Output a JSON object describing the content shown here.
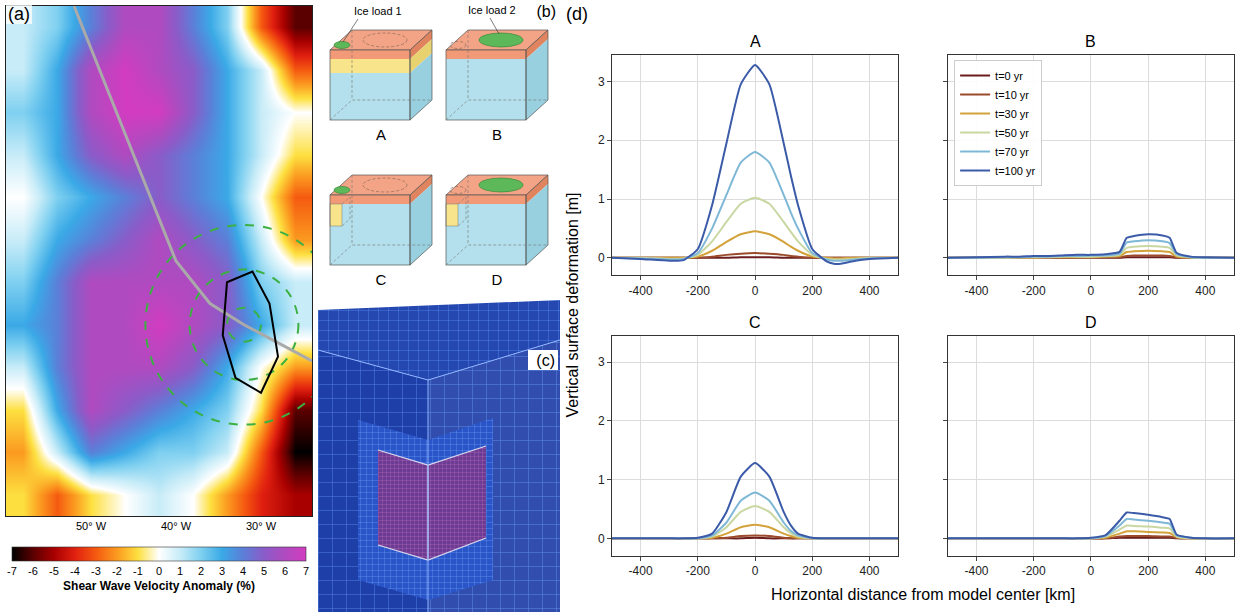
{
  "chart_data": [
    {
      "type": "heatmap",
      "panel_label": "(a)",
      "x": [
        -58,
        -54,
        -50,
        -46,
        -42,
        -38,
        -34,
        -30,
        -26
      ],
      "y": [
        60,
        62,
        64,
        66,
        68,
        70,
        72,
        74,
        76,
        78,
        80,
        82
      ],
      "cells": [
        [
          -1,
          -3,
          -1,
          0,
          1,
          0,
          -2,
          -4,
          -5
        ],
        [
          -2,
          1,
          4,
          3,
          2,
          2,
          1,
          -3,
          -7
        ],
        [
          -1,
          3,
          6,
          5,
          4,
          3,
          2,
          -1,
          -6
        ],
        [
          1,
          4,
          6,
          6,
          6,
          5,
          3,
          0,
          -2
        ],
        [
          3,
          4,
          6,
          6,
          7,
          6,
          5,
          3,
          1
        ],
        [
          2,
          4,
          6,
          6,
          6,
          6,
          5,
          2,
          1
        ],
        [
          1,
          3,
          4,
          5,
          6,
          5,
          4,
          1,
          -2
        ],
        [
          0,
          2,
          3,
          4,
          5,
          4,
          3,
          0,
          -3
        ],
        [
          1,
          3,
          5,
          6,
          5,
          4,
          3,
          1,
          -1
        ],
        [
          2,
          3,
          6,
          7,
          7,
          5,
          3,
          1,
          0
        ],
        [
          1,
          3,
          6,
          7,
          6,
          5,
          3,
          1,
          -3
        ],
        [
          1,
          2,
          4,
          6,
          6,
          4,
          2,
          -3,
          -6
        ]
      ],
      "xlim": [
        -60,
        -24
      ],
      "ylim": [
        59,
        83
      ],
      "xticks": [
        {
          "value": -50,
          "label": "50° W"
        },
        {
          "value": -40,
          "label": "40° W"
        },
        {
          "value": -30,
          "label": "30° W"
        }
      ],
      "tick_labels": "x",
      "colorbar": {
        "title": "Shear Wave Velocity Anomaly (%)",
        "range": [
          -7,
          7
        ],
        "ticks": [
          -7,
          -6,
          -5,
          -4,
          -3,
          -2,
          -1,
          0,
          1,
          2,
          3,
          4,
          5,
          6,
          7
        ]
      }
    },
    {
      "type": "line",
      "title": "A",
      "x": [
        -500,
        -400,
        -300,
        -250,
        -200,
        -150,
        -100,
        -50,
        0,
        50,
        100,
        125,
        150,
        200,
        250,
        275,
        300,
        350,
        400,
        500
      ],
      "series": [
        {
          "name": "t=0 yr",
          "color": "#6b1d1d",
          "values": [
            0,
            0,
            0,
            0,
            0,
            0,
            0,
            0.01,
            0.01,
            0.01,
            0,
            0,
            0,
            0,
            0,
            0,
            0,
            0,
            0,
            0
          ]
        },
        {
          "name": "t=10 yr",
          "color": "#9b4a2c",
          "values": [
            0,
            0,
            0,
            0,
            0,
            0.02,
            0.05,
            0.07,
            0.08,
            0.07,
            0.05,
            0.03,
            0.02,
            0,
            0,
            0,
            0,
            0,
            0,
            0
          ]
        },
        {
          "name": "t=30 yr",
          "color": "#d4a23a",
          "values": [
            0,
            0,
            0,
            0,
            0.02,
            0.12,
            0.27,
            0.4,
            0.45,
            0.4,
            0.27,
            0.19,
            0.12,
            0.02,
            0,
            -0.01,
            -0.01,
            0,
            0,
            0
          ]
        },
        {
          "name": "t=50 yr",
          "color": "#c9d7a2",
          "values": [
            0,
            0,
            -0.02,
            -0.01,
            0.05,
            0.28,
            0.61,
            0.92,
            1.02,
            0.92,
            0.61,
            0.44,
            0.28,
            0.05,
            -0.02,
            -0.03,
            -0.03,
            -0.02,
            0,
            0
          ]
        },
        {
          "name": "t=70 yr",
          "color": "#7fb8d6",
          "values": [
            0,
            -0.01,
            -0.03,
            -0.02,
            0.08,
            0.5,
            1.07,
            1.62,
            1.8,
            1.62,
            1.07,
            0.77,
            0.5,
            0.08,
            -0.03,
            -0.05,
            -0.05,
            -0.03,
            -0.01,
            0
          ]
        },
        {
          "name": "t=100 yr",
          "color": "#3b5ba9",
          "values": [
            0,
            -0.02,
            -0.05,
            -0.04,
            0.15,
            0.9,
            1.95,
            2.95,
            3.28,
            2.95,
            1.95,
            1.4,
            0.9,
            0.15,
            -0.06,
            -0.1,
            -0.1,
            -0.05,
            -0.02,
            0
          ]
        }
      ],
      "xlim": [
        -500,
        500
      ],
      "ylim": [
        -0.3,
        3.45
      ],
      "xticks": [
        -400,
        -200,
        0,
        200,
        400
      ],
      "yticks": [
        0,
        1,
        2,
        3
      ],
      "grid": true
    },
    {
      "type": "line",
      "title": "B",
      "x": [
        -500,
        -400,
        -300,
        -250,
        -200,
        -150,
        -100,
        -50,
        0,
        50,
        100,
        125,
        150,
        200,
        250,
        275,
        300,
        350,
        400,
        500
      ],
      "series": [
        {
          "name": "t=0 yr",
          "color": "#6b1d1d",
          "values": [
            0,
            0,
            0,
            0,
            0,
            0,
            0,
            0,
            0,
            0,
            0,
            0.01,
            0.01,
            0.01,
            0.01,
            0.01,
            0,
            0,
            0,
            0
          ]
        },
        {
          "name": "t=10 yr",
          "color": "#9b4a2c",
          "values": [
            0,
            0,
            0,
            0,
            0,
            0,
            0,
            0.01,
            0.01,
            0.01,
            0.01,
            0.03,
            0.04,
            0.04,
            0.04,
            0.03,
            0.01,
            0,
            0,
            0
          ]
        },
        {
          "name": "t=30 yr",
          "color": "#d4a23a",
          "values": [
            0,
            0,
            0,
            0,
            0,
            0.01,
            0.01,
            0.01,
            0.01,
            0.02,
            0.03,
            0.1,
            0.11,
            0.12,
            0.11,
            0.1,
            0.02,
            0,
            0,
            0
          ]
        },
        {
          "name": "t=50 yr",
          "color": "#c9d7a2",
          "values": [
            0,
            0,
            0,
            0.01,
            0.01,
            0.01,
            0.02,
            0.02,
            0.02,
            0.03,
            0.05,
            0.17,
            0.19,
            0.2,
            0.19,
            0.17,
            0.04,
            0.01,
            0,
            0
          ]
        },
        {
          "name": "t=70 yr",
          "color": "#7fb8d6",
          "values": [
            0,
            0,
            0.01,
            0.01,
            0.02,
            0.02,
            0.03,
            0.03,
            0.04,
            0.04,
            0.07,
            0.26,
            0.28,
            0.3,
            0.28,
            0.25,
            0.06,
            0.01,
            0,
            0
          ]
        },
        {
          "name": "t=100 yr",
          "color": "#3b5ba9",
          "values": [
            0,
            0.01,
            0.02,
            0.02,
            0.03,
            0.03,
            0.04,
            0.05,
            0.05,
            0.06,
            0.1,
            0.34,
            0.37,
            0.4,
            0.38,
            0.34,
            0.08,
            0.02,
            0.01,
            0
          ]
        }
      ],
      "xlim": [
        -500,
        500
      ],
      "ylim": [
        -0.3,
        3.45
      ],
      "xticks": [
        -400,
        -200,
        0,
        200,
        400
      ],
      "yticks": [
        0,
        1,
        2,
        3
      ],
      "grid": true,
      "tick_labels": "x",
      "legend": "upper left"
    },
    {
      "type": "line",
      "title": "C",
      "x": [
        -500,
        -400,
        -300,
        -250,
        -200,
        -150,
        -100,
        -50,
        0,
        50,
        100,
        125,
        150,
        200,
        250,
        275,
        300,
        350,
        400,
        500
      ],
      "series": [
        {
          "name": "t=0 yr",
          "color": "#6b1d1d",
          "values": [
            0,
            0,
            0,
            0,
            0,
            0,
            0,
            0,
            0.01,
            0,
            0,
            0,
            0,
            0,
            0,
            0,
            0,
            0,
            0,
            0
          ]
        },
        {
          "name": "t=10 yr",
          "color": "#9b4a2c",
          "values": [
            0,
            0,
            0,
            0,
            0,
            0,
            0.01,
            0.04,
            0.05,
            0.04,
            0.01,
            0,
            0,
            0,
            0,
            0,
            0,
            0,
            0,
            0
          ]
        },
        {
          "name": "t=30 yr",
          "color": "#d4a23a",
          "values": [
            0,
            0,
            0,
            0,
            0,
            0.01,
            0.08,
            0.19,
            0.23,
            0.19,
            0.08,
            0.04,
            0.01,
            0,
            0,
            0,
            0,
            0,
            0,
            0
          ]
        },
        {
          "name": "t=50 yr",
          "color": "#c9d7a2",
          "values": [
            0,
            0,
            0,
            0,
            0,
            0.03,
            0.19,
            0.45,
            0.55,
            0.45,
            0.19,
            0.09,
            0.03,
            0,
            0,
            0,
            0,
            0,
            0,
            0
          ]
        },
        {
          "name": "t=70 yr",
          "color": "#7fb8d6",
          "values": [
            0,
            0,
            0,
            0,
            0,
            0.05,
            0.27,
            0.64,
            0.78,
            0.64,
            0.27,
            0.13,
            0.05,
            0,
            0,
            0,
            0,
            0,
            0,
            0
          ]
        },
        {
          "name": "t=100 yr",
          "color": "#3b5ba9",
          "values": [
            0,
            0,
            0,
            0,
            0.01,
            0.08,
            0.45,
            1.05,
            1.28,
            1.05,
            0.45,
            0.22,
            0.08,
            0.01,
            0,
            0,
            0,
            0,
            0,
            0
          ]
        }
      ],
      "xlim": [
        -500,
        500
      ],
      "ylim": [
        -0.3,
        3.45
      ],
      "xticks": [
        -400,
        -200,
        0,
        200,
        400
      ],
      "yticks": [
        0,
        1,
        2,
        3
      ],
      "grid": true
    },
    {
      "type": "line",
      "title": "D",
      "x": [
        -500,
        -400,
        -300,
        -250,
        -200,
        -150,
        -100,
        -50,
        0,
        50,
        100,
        125,
        150,
        200,
        250,
        275,
        300,
        350,
        400,
        500
      ],
      "series": [
        {
          "name": "t=0 yr",
          "color": "#6b1d1d",
          "values": [
            0,
            0,
            0,
            0,
            0,
            0,
            0,
            0,
            0,
            0,
            0.01,
            0.01,
            0.01,
            0.01,
            0.01,
            0.01,
            0,
            0,
            0,
            0
          ]
        },
        {
          "name": "t=10 yr",
          "color": "#9b4a2c",
          "values": [
            0,
            0,
            0,
            0,
            0,
            0,
            0,
            0,
            0,
            0,
            0.03,
            0.04,
            0.04,
            0.04,
            0.03,
            0.03,
            0.01,
            0,
            0,
            0
          ]
        },
        {
          "name": "t=30 yr",
          "color": "#d4a23a",
          "values": [
            0,
            0,
            0,
            0,
            0,
            0,
            0,
            0,
            0,
            0.01,
            0.08,
            0.12,
            0.12,
            0.11,
            0.1,
            0.09,
            0.02,
            0,
            0,
            0
          ]
        },
        {
          "name": "t=50 yr",
          "color": "#c9d7a2",
          "values": [
            0,
            0,
            0,
            0,
            0,
            0,
            0,
            0,
            0,
            0.03,
            0.15,
            0.22,
            0.21,
            0.2,
            0.18,
            0.17,
            0.03,
            0,
            0,
            0
          ]
        },
        {
          "name": "t=70 yr",
          "color": "#7fb8d6",
          "values": [
            0,
            0,
            0,
            0,
            0,
            0,
            0,
            0,
            0,
            0.04,
            0.22,
            0.33,
            0.32,
            0.3,
            0.27,
            0.25,
            0.05,
            0.01,
            0,
            0
          ]
        },
        {
          "name": "t=100 yr",
          "color": "#3b5ba9",
          "values": [
            0,
            0,
            0,
            0,
            0,
            0,
            0,
            0,
            0.01,
            0.05,
            0.3,
            0.44,
            0.43,
            0.4,
            0.36,
            0.33,
            0.06,
            0.01,
            0,
            0
          ]
        }
      ],
      "xlim": [
        -500,
        500
      ],
      "ylim": [
        -0.3,
        3.45
      ],
      "xticks": [
        -400,
        -200,
        0,
        200,
        400
      ],
      "yticks": [
        0,
        1,
        2,
        3
      ],
      "grid": true,
      "tick_labels": "x"
    }
  ],
  "figure": {
    "panel_label": "(d)",
    "xlabel": "Horizontal distance from model center [km]",
    "ylabel": "Vertical surface deformation [m]"
  },
  "diagrams": {
    "panel_label": "(b)",
    "ice_loads": [
      "Ice load 1",
      "Ice load 2"
    ],
    "models": [
      "A",
      "B",
      "C",
      "D"
    ]
  },
  "mesh": {
    "panel_label": "(c)"
  }
}
